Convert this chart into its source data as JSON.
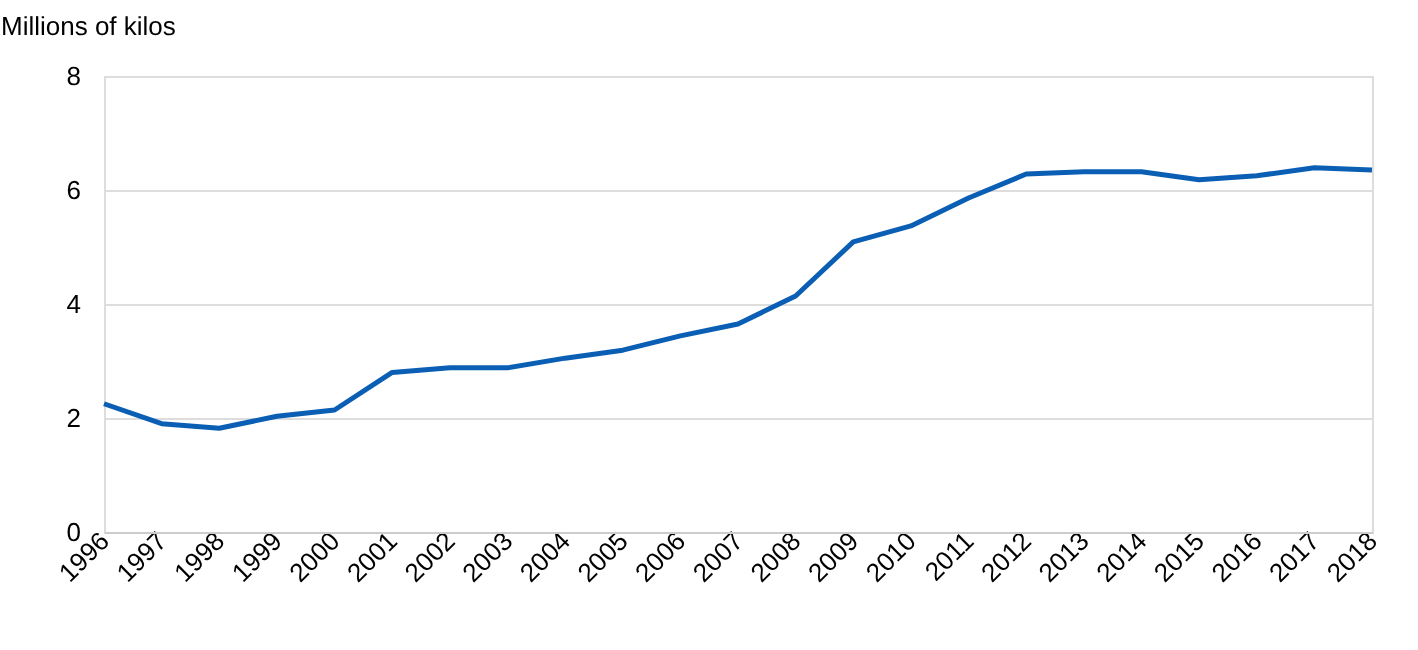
{
  "chart_data": {
    "type": "line",
    "ylabel": "Millions of kilos",
    "categories": [
      "1996",
      "1997",
      "1998",
      "1999",
      "2000",
      "2001",
      "2002",
      "2003",
      "2004",
      "2005",
      "2006",
      "2007",
      "2008",
      "2009",
      "2010",
      "2011",
      "2012",
      "2013",
      "2014",
      "2015",
      "2016",
      "2017",
      "2018"
    ],
    "series": [
      {
        "color": "#0a5fb4",
        "values": [
          2.25,
          1.9,
          1.82,
          2.03,
          2.14,
          2.8,
          2.88,
          2.88,
          3.05,
          3.19,
          3.44,
          3.65,
          4.14,
          5.09,
          5.37,
          5.86,
          6.28,
          6.32,
          6.32,
          6.18,
          6.25,
          6.39,
          6.35
        ]
      }
    ],
    "ylim": [
      0,
      8
    ],
    "yticks": [
      0,
      2,
      4,
      6,
      8
    ],
    "grid": "y",
    "marker": "none",
    "line_style": "solid"
  }
}
